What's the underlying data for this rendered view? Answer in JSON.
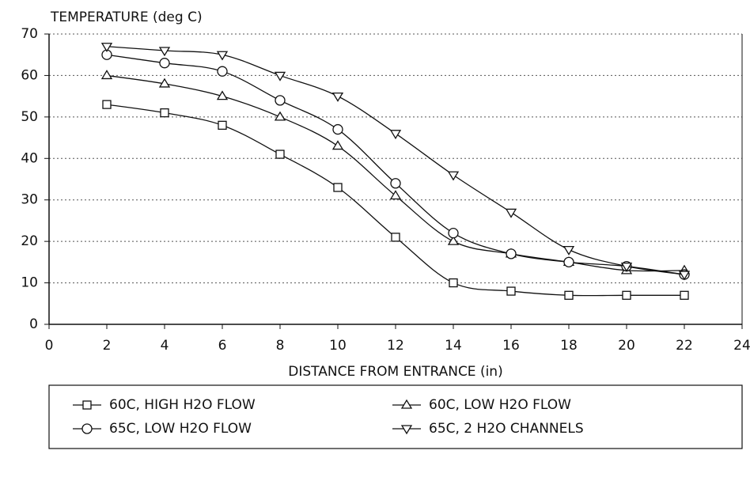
{
  "chart_data": {
    "type": "line",
    "y_axis_label": "TEMPERATURE (deg C)",
    "x_axis_label": "DISTANCE FROM ENTRANCE (in)",
    "x": [
      2,
      4,
      6,
      8,
      10,
      12,
      14,
      16,
      18,
      20,
      22
    ],
    "series": [
      {
        "name": "60C, HIGH H2O FLOW",
        "color": "#111111",
        "marker": "square",
        "values": [
          53,
          51,
          48,
          41,
          33,
          21,
          10,
          8,
          7,
          7,
          7
        ]
      },
      {
        "name": "60C, LOW H2O FLOW",
        "color": "#111111",
        "marker": "triangle-up",
        "values": [
          60,
          58,
          55,
          50,
          43,
          31,
          20,
          17,
          15,
          13,
          13
        ]
      },
      {
        "name": "65C, LOW H2O FLOW",
        "color": "#111111",
        "marker": "circle",
        "values": [
          65,
          63,
          61,
          54,
          47,
          34,
          22,
          17,
          15,
          14,
          12
        ]
      },
      {
        "name": "65C, 2 H2O CHANNELS",
        "color": "#111111",
        "marker": "triangle-down",
        "values": [
          67,
          66,
          65,
          60,
          55,
          46,
          36,
          27,
          18,
          14,
          12
        ]
      }
    ],
    "xlim": [
      0,
      24
    ],
    "xticks": [
      0,
      2,
      4,
      6,
      8,
      10,
      12,
      14,
      16,
      18,
      20,
      22,
      24
    ],
    "ylim": [
      0,
      70
    ],
    "yticks": [
      0,
      10,
      20,
      30,
      40,
      50,
      60,
      70
    ],
    "grid": true,
    "legend": "bottom"
  }
}
